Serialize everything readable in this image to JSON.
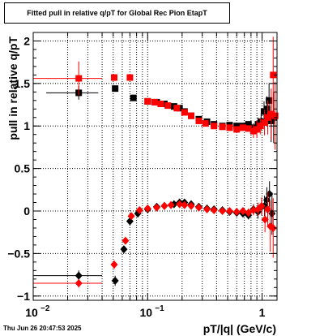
{
  "chart_data": {
    "type": "scatter",
    "title": "Fitted pull in relative q/pT for Global Rec Pion EtapT",
    "xlabel": "pT/|q| (GeV/c)",
    "ylabel": "pull in relative q/pT",
    "x_scale": "log",
    "xlim": [
      0.01,
      1.35
    ],
    "ylim": [
      -1.05,
      2.1
    ],
    "grid": true,
    "x_ticks": [
      {
        "value": 0.01,
        "label": "10"
      },
      {
        "value": 0.1,
        "label": "10"
      },
      {
        "value": 1,
        "label": "1"
      }
    ],
    "x_tick_exponents": [
      "−2",
      "−1",
      ""
    ],
    "y_ticks": [
      {
        "value": -1,
        "label": "−1"
      },
      {
        "value": -0.5,
        "label": "−0.5"
      },
      {
        "value": 0,
        "label": "0"
      },
      {
        "value": 0.5,
        "label": "0.5"
      },
      {
        "value": 1,
        "label": "1"
      },
      {
        "value": 1.5,
        "label": "1.5"
      },
      {
        "value": 2,
        "label": "2"
      }
    ],
    "series": [
      {
        "marker": "square",
        "color": "#000000",
        "points": [
          {
            "x": 0.025,
            "y": 1.39,
            "xerr": 0.012,
            "yerr": 0.08
          },
          {
            "x": 0.052,
            "y": 1.44,
            "xerr": 0.0,
            "yerr": 0.03
          },
          {
            "x": 0.075,
            "y": 1.33
          },
          {
            "x": 0.1,
            "y": 1.29
          },
          {
            "x": 0.12,
            "y": 1.28
          },
          {
            "x": 0.14,
            "y": 1.26
          },
          {
            "x": 0.17,
            "y": 1.23
          },
          {
            "x": 0.19,
            "y": 1.21
          },
          {
            "x": 0.21,
            "y": 1.17
          },
          {
            "x": 0.24,
            "y": 1.12
          },
          {
            "x": 0.28,
            "y": 1.08
          },
          {
            "x": 0.33,
            "y": 1.05
          },
          {
            "x": 0.38,
            "y": 1.02
          },
          {
            "x": 0.45,
            "y": 1.0
          },
          {
            "x": 0.52,
            "y": 1.01
          },
          {
            "x": 0.6,
            "y": 1.0
          },
          {
            "x": 0.68,
            "y": 1.0
          },
          {
            "x": 0.76,
            "y": 1.02
          },
          {
            "x": 0.84,
            "y": 0.98,
            "yerr": 0.05
          },
          {
            "x": 0.92,
            "y": 1.02,
            "yerr": 0.08
          },
          {
            "x": 0.98,
            "y": 1.05,
            "yerr": 0.1
          },
          {
            "x": 1.04,
            "y": 1.17,
            "yerr": 0.12
          },
          {
            "x": 1.1,
            "y": 1.2,
            "yerr": 0.15
          },
          {
            "x": 1.15,
            "y": 1.3,
            "yerr": 0.2
          },
          {
            "x": 1.2,
            "y": 1.06,
            "yerr": 0.25
          },
          {
            "x": 1.26,
            "y": 1.1,
            "yerr": 0.3
          }
        ]
      },
      {
        "marker": "square",
        "color": "#ff0000",
        "points": [
          {
            "x": 0.025,
            "y": 1.56,
            "xerr": 0.015,
            "yerr": 0.2
          },
          {
            "x": 0.051,
            "y": 1.57,
            "xerr": 0.0,
            "yerr": 0.04
          },
          {
            "x": 0.07,
            "y": 1.57
          },
          {
            "x": 0.1,
            "y": 1.29
          },
          {
            "x": 0.115,
            "y": 1.28
          },
          {
            "x": 0.13,
            "y": 1.26
          },
          {
            "x": 0.15,
            "y": 1.24
          },
          {
            "x": 0.18,
            "y": 1.21
          },
          {
            "x": 0.21,
            "y": 1.16
          },
          {
            "x": 0.24,
            "y": 1.12
          },
          {
            "x": 0.28,
            "y": 1.06
          },
          {
            "x": 0.32,
            "y": 1.03
          },
          {
            "x": 0.38,
            "y": 1.0
          },
          {
            "x": 0.45,
            "y": 0.99
          },
          {
            "x": 0.52,
            "y": 0.98
          },
          {
            "x": 0.6,
            "y": 0.96
          },
          {
            "x": 0.68,
            "y": 0.98
          },
          {
            "x": 0.76,
            "y": 0.97
          },
          {
            "x": 0.84,
            "y": 0.94,
            "yerr": 0.08
          },
          {
            "x": 0.9,
            "y": 0.96,
            "yerr": 0.1
          },
          {
            "x": 0.97,
            "y": 1.0,
            "yerr": 0.1
          },
          {
            "x": 1.05,
            "y": 1.04,
            "yerr": 0.15
          },
          {
            "x": 1.12,
            "y": 1.1,
            "yerr": 0.2
          },
          {
            "x": 1.2,
            "y": 1.14,
            "yerr": 0.3
          },
          {
            "x": 1.25,
            "y": 1.6,
            "yerr": 0.45
          },
          {
            "x": 1.3,
            "y": 1.12,
            "yerr": 0.4
          }
        ]
      },
      {
        "marker": "diamond",
        "color": "#000000",
        "points": [
          {
            "x": 0.025,
            "y": -0.76,
            "xerr": 0.015,
            "yerr": 0.06
          },
          {
            "x": 0.052,
            "y": -0.82,
            "xerr": 0.0,
            "yerr": 0.06
          },
          {
            "x": 0.062,
            "y": -0.45
          },
          {
            "x": 0.07,
            "y": -0.12
          },
          {
            "x": 0.082,
            "y": -0.03
          },
          {
            "x": 0.1,
            "y": 0.02
          },
          {
            "x": 0.12,
            "y": 0.05
          },
          {
            "x": 0.14,
            "y": 0.06
          },
          {
            "x": 0.17,
            "y": 0.08
          },
          {
            "x": 0.19,
            "y": 0.1
          },
          {
            "x": 0.21,
            "y": 0.1
          },
          {
            "x": 0.24,
            "y": 0.08
          },
          {
            "x": 0.28,
            "y": 0.05
          },
          {
            "x": 0.33,
            "y": 0.03
          },
          {
            "x": 0.38,
            "y": 0.02
          },
          {
            "x": 0.45,
            "y": 0.01
          },
          {
            "x": 0.52,
            "y": -0.01
          },
          {
            "x": 0.6,
            "y": -0.02
          },
          {
            "x": 0.68,
            "y": -0.03
          },
          {
            "x": 0.76,
            "y": -0.05,
            "yerr": 0.05
          },
          {
            "x": 0.84,
            "y": 0.02,
            "yerr": 0.06
          },
          {
            "x": 0.92,
            "y": -0.01,
            "yerr": 0.08
          },
          {
            "x": 0.99,
            "y": 0.05,
            "yerr": 0.1
          },
          {
            "x": 1.05,
            "y": 0.06,
            "yerr": 0.12
          },
          {
            "x": 1.1,
            "y": 0.13,
            "yerr": 0.15
          },
          {
            "x": 1.16,
            "y": 0.2,
            "yerr": 0.15
          },
          {
            "x": 1.22,
            "y": -0.03,
            "yerr": 0.25
          }
        ]
      },
      {
        "marker": "diamond",
        "color": "#ff0000",
        "points": [
          {
            "x": 0.025,
            "y": -0.85,
            "xerr": 0.015,
            "yerr": 0.05
          },
          {
            "x": 0.051,
            "y": -0.63,
            "xerr": 0.0,
            "yerr": 0.05
          },
          {
            "x": 0.064,
            "y": -0.35
          },
          {
            "x": 0.072,
            "y": -0.06
          },
          {
            "x": 0.085,
            "y": 0.01
          },
          {
            "x": 0.1,
            "y": 0.03
          },
          {
            "x": 0.12,
            "y": 0.04
          },
          {
            "x": 0.14,
            "y": 0.06
          },
          {
            "x": 0.16,
            "y": 0.07
          },
          {
            "x": 0.19,
            "y": 0.08
          },
          {
            "x": 0.21,
            "y": 0.07
          },
          {
            "x": 0.24,
            "y": 0.06
          },
          {
            "x": 0.28,
            "y": 0.04
          },
          {
            "x": 0.33,
            "y": 0.02
          },
          {
            "x": 0.38,
            "y": 0.01
          },
          {
            "x": 0.45,
            "y": 0.0
          },
          {
            "x": 0.52,
            "y": 0.0
          },
          {
            "x": 0.6,
            "y": -0.01
          },
          {
            "x": 0.68,
            "y": 0.0
          },
          {
            "x": 0.76,
            "y": -0.02,
            "yerr": 0.05
          },
          {
            "x": 0.84,
            "y": 0.01,
            "yerr": 0.06
          },
          {
            "x": 0.92,
            "y": 0.02,
            "yerr": 0.08
          },
          {
            "x": 0.99,
            "y": 0.06,
            "yerr": 0.1
          },
          {
            "x": 1.06,
            "y": -0.1,
            "yerr": 0.15
          },
          {
            "x": 1.12,
            "y": 0.02,
            "yerr": 0.2
          },
          {
            "x": 1.18,
            "y": -0.18,
            "yerr": 0.3
          },
          {
            "x": 1.25,
            "y": -0.2,
            "yerr": 0.35
          }
        ]
      }
    ]
  },
  "footer": {
    "timestamp": "Thu Jun 26 20:47:53 2025"
  }
}
